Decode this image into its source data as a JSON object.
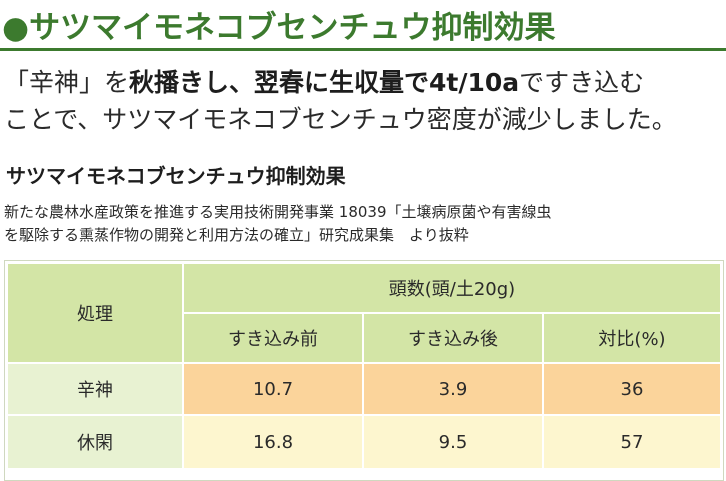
{
  "header": {
    "bullet": "●",
    "title": "サツマイモネコブセンチュウ抑制効果"
  },
  "lead": {
    "line1_pre": "「辛神」を",
    "line1_bold1": "秋播きし、翌春に生収量で4t/10a",
    "line1_post": "ですき込む",
    "line2": "ことで、サツマイモネコブセンチュウ密度が減少しました。"
  },
  "section": {
    "title": "サツマイモネコブセンチュウ抑制効果",
    "source_line1": "新たな農林水産政策を推進する実用技術開発事業 18039「土壌病原菌や有害線虫",
    "source_line2": "を駆除する熏蒸作物の開発と利用方法の確立」研究成果集　より抜粋"
  },
  "table": {
    "treatment_header": "処理",
    "count_header": "頭数(頭/土20g)",
    "columns": [
      "すき込み前",
      "すき込み後",
      "対比(%)"
    ],
    "rows": [
      {
        "label": "辛神",
        "values": [
          "10.7",
          "3.9",
          "36"
        ]
      },
      {
        "label": "休閑",
        "values": [
          "16.8",
          "9.5",
          "57"
        ]
      }
    ]
  },
  "colors": {
    "accent_green": "#3c7a2e",
    "header_cell": "#d3e5a6",
    "row_label_cell": "#e8f2d2",
    "highlight_row": "#fbd49b",
    "plain_row": "#fdf6cf"
  }
}
